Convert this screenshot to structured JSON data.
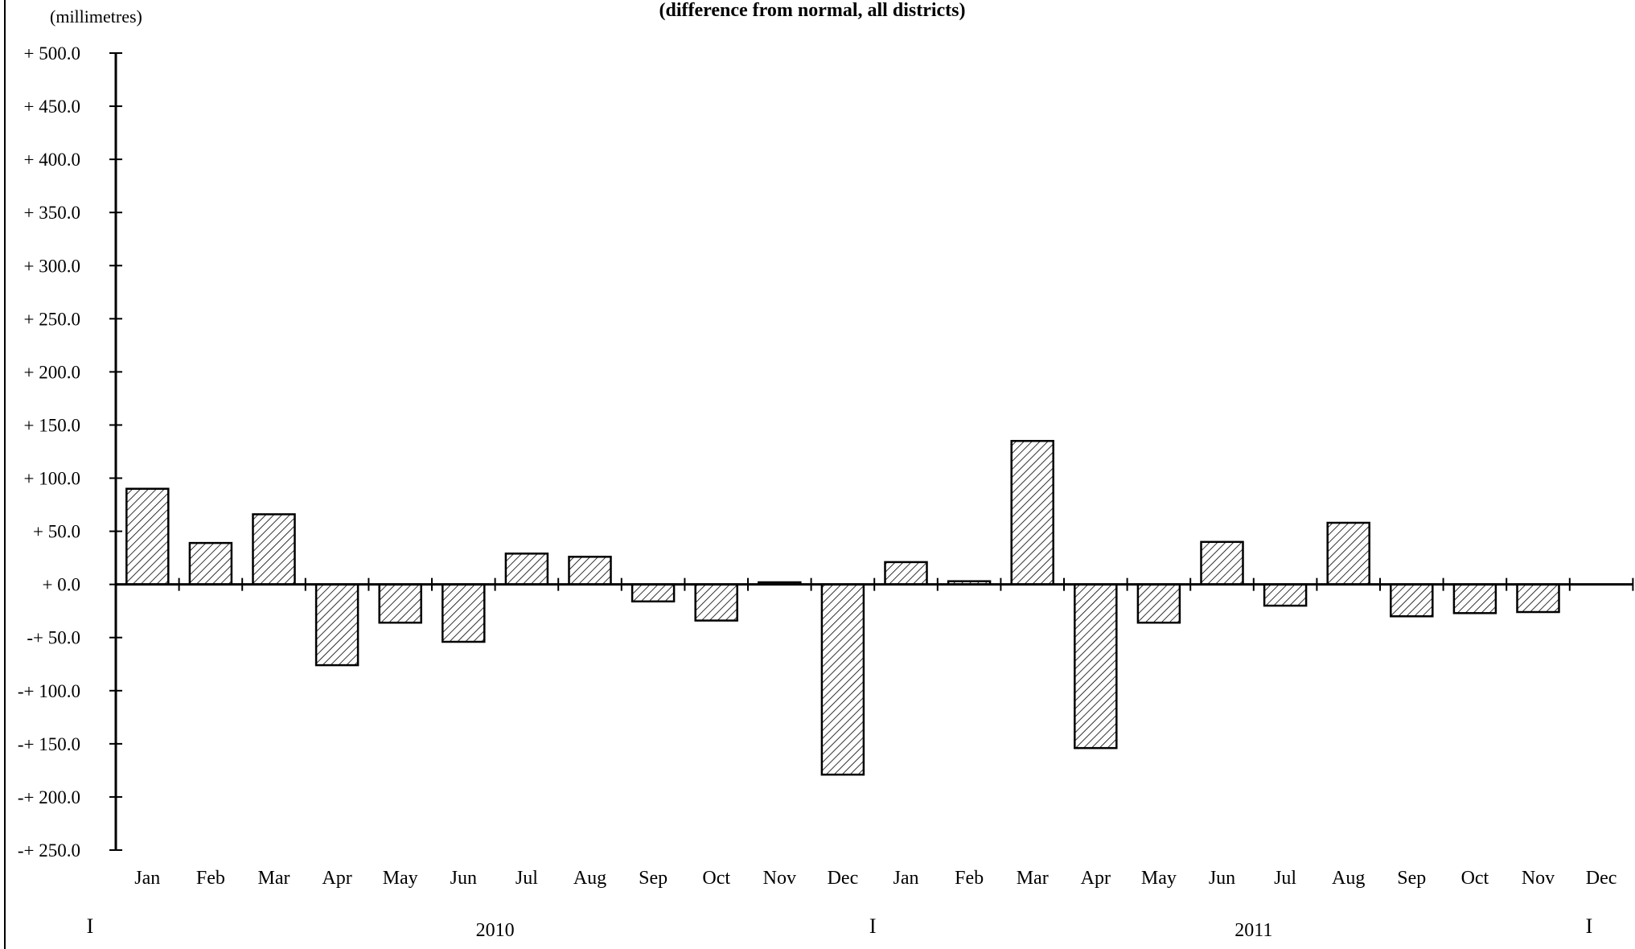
{
  "chart_data": {
    "type": "bar",
    "unit_label": "(millimetres)",
    "subtitle": "(difference from normal, all districts)",
    "y_ticks": [
      "+ 500.0",
      "+ 450.0",
      "+ 400.0",
      "+ 350.0",
      "+ 300.0",
      "+ 250.0",
      "+ 200.0",
      "+ 150.0",
      "+ 100.0",
      "+ 50.0",
      "+ 0.0",
      "-+ 50.0",
      "-+ 100.0",
      "-+ 150.0",
      "-+ 200.0",
      "-+ 250.0"
    ],
    "y_tick_values": [
      500,
      450,
      400,
      350,
      300,
      250,
      200,
      150,
      100,
      50,
      0,
      -50,
      -100,
      -150,
      -200,
      -250
    ],
    "ylim": [
      -250,
      500
    ],
    "categories": [
      "Jan",
      "Feb",
      "Mar",
      "Apr",
      "May",
      "Jun",
      "Jul",
      "Aug",
      "Sep",
      "Oct",
      "Nov",
      "Dec",
      "Jan",
      "Feb",
      "Mar",
      "Apr",
      "May",
      "Jun",
      "Jul",
      "Aug",
      "Sep",
      "Oct",
      "Nov",
      "Dec"
    ],
    "values": [
      90,
      39,
      66,
      -76,
      -36,
      -54,
      29,
      26,
      -16,
      -34,
      2,
      -179,
      21,
      3,
      135,
      -154,
      -36,
      40,
      -20,
      58,
      -30,
      -27,
      -26,
      null
    ],
    "years": [
      "2010",
      "2011"
    ],
    "separator": "I",
    "bar_pattern": "diagonal-hatch",
    "grid": false,
    "legend": "none"
  }
}
